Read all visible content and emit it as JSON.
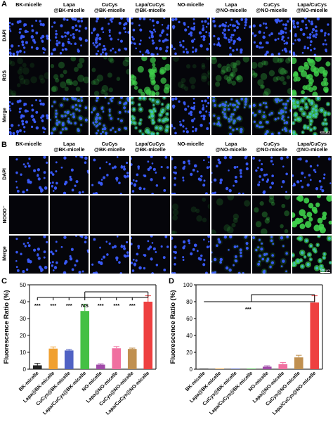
{
  "panels": {
    "A": {
      "letter": "A",
      "columns": [
        "BK-micelle",
        "Lapa\n@BK-micelle",
        "CuCys\n@BK-micelle",
        "Lapa/CuCys\n@BK-micelle",
        "NO-micelle",
        "Lapa\n@NO-micelle",
        "CuCys\n@NO-micelle",
        "Lapa/CuCys\n@NO-micelle"
      ],
      "rows": [
        "DAPI",
        "ROS",
        "Merge"
      ],
      "scale_bar": "100 μm"
    },
    "B": {
      "letter": "B",
      "columns": [
        "BK-micelle",
        "Lapa\n@BK-micelle",
        "CuCys\n@BK-micelle",
        "Lapa/CuCys\n@BK-micelle",
        "NO-micelle",
        "Lapa\n@NO-micelle",
        "CuCys\n@NO-micelle",
        "Lapa/CuCys\n@NO-micelle"
      ],
      "rows": [
        "DAPI",
        "NOOO⁻",
        "Merge"
      ],
      "scale_bar": "100 μm"
    },
    "C": {
      "letter": "C"
    },
    "D": {
      "letter": "D"
    }
  },
  "fluor_level": {
    "A": [
      0.02,
      0.12,
      0.1,
      0.38,
      0.03,
      0.14,
      0.13,
      0.45
    ],
    "B": [
      0.0,
      0.0,
      0.0,
      0.0,
      0.03,
      0.06,
      0.14,
      0.75
    ]
  },
  "colors": {
    "dapi": "#3a5cff",
    "ros": "#3ed14a",
    "merge": "#3fb8c8"
  },
  "chart_data": [
    {
      "type": "bar",
      "ylabel": "Fluorescence Ratio (%)",
      "ylim": [
        0,
        50
      ],
      "yticks": [
        0,
        10,
        20,
        30,
        40,
        50
      ],
      "categories": [
        "BK-micelle",
        "Lapa@BK-micelle",
        "CuCys@BK-micelle",
        "Lapa/CuCys@BK-micelle",
        "NO-micelle",
        "Lapa@NO-micelle",
        "CuCys@NO-micelle",
        "Lapa/CuCys@NO-micelle"
      ],
      "values": [
        2.3,
        12.2,
        11.1,
        34.5,
        2.7,
        12.4,
        12.0,
        40.0
      ],
      "errors": [
        1.2,
        1.0,
        0.6,
        4.0,
        0.4,
        1.0,
        0.5,
        3.5
      ],
      "colors": [
        "#222222",
        "#f0a030",
        "#5062c4",
        "#44c044",
        "#a04aa8",
        "#f070a0",
        "#c09050",
        "#ee4040"
      ],
      "significance": [
        "***",
        "***",
        "***",
        "NS",
        "***",
        "***",
        "***"
      ]
    },
    {
      "type": "bar",
      "ylabel": "Fluorescence Ratio (%)",
      "ylim": [
        0,
        100
      ],
      "yticks": [
        0,
        20,
        40,
        60,
        80,
        100
      ],
      "categories": [
        "BK-micelle",
        "Lapa@BK-micelle",
        "CuCys@BK-micelle",
        "Lapa/CuCys@BK-micelle",
        "NO-micelle",
        "Lapa@NO-micelle",
        "CuCys@NO-micelle",
        "Lapa/CuCys@NO-micelle"
      ],
      "values": [
        0,
        0,
        0,
        0,
        3.0,
        6.0,
        14.0,
        79.0
      ],
      "errors": [
        0,
        0,
        0,
        0,
        1.0,
        2.0,
        2.5,
        8.0
      ],
      "colors": [
        "#222222",
        "#f0a030",
        "#5062c4",
        "#44c044",
        "#a04aa8",
        "#f070a0",
        "#c09050",
        "#ee4040"
      ],
      "significance": [
        "***"
      ]
    }
  ]
}
